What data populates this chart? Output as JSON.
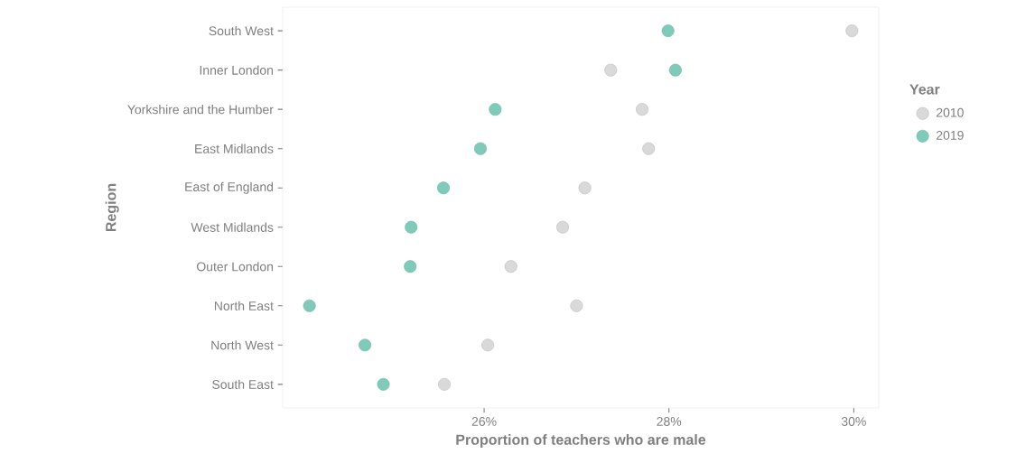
{
  "chart_data": {
    "type": "scatter",
    "orientation": "horizontal",
    "xlabel": "Proportion of teachers who are male",
    "ylabel": "Region",
    "legend_title": "Year",
    "legend": "right",
    "marker": "circle",
    "categories": [
      "South West",
      "Inner London",
      "Yorkshire and the Humber",
      "East Midlands",
      "East of England",
      "West Midlands",
      "Outer London",
      "North East",
      "North West",
      "South East"
    ],
    "series": [
      {
        "name": "2010",
        "color": "#d9d9d9",
        "values": [
          29.98,
          27.37,
          27.71,
          27.78,
          27.09,
          26.85,
          26.29,
          27.0,
          26.04,
          25.57
        ]
      },
      {
        "name": "2019",
        "color": "#7fcbb9",
        "values": [
          27.99,
          28.07,
          26.12,
          25.96,
          25.56,
          25.21,
          25.2,
          24.11,
          24.71,
          24.91
        ]
      }
    ],
    "xlim": [
      23.82,
      30.27
    ],
    "xticks": [
      {
        "value": 26,
        "label": "26%"
      },
      {
        "value": 28,
        "label": "28%"
      },
      {
        "value": 30,
        "label": "30%"
      }
    ]
  }
}
